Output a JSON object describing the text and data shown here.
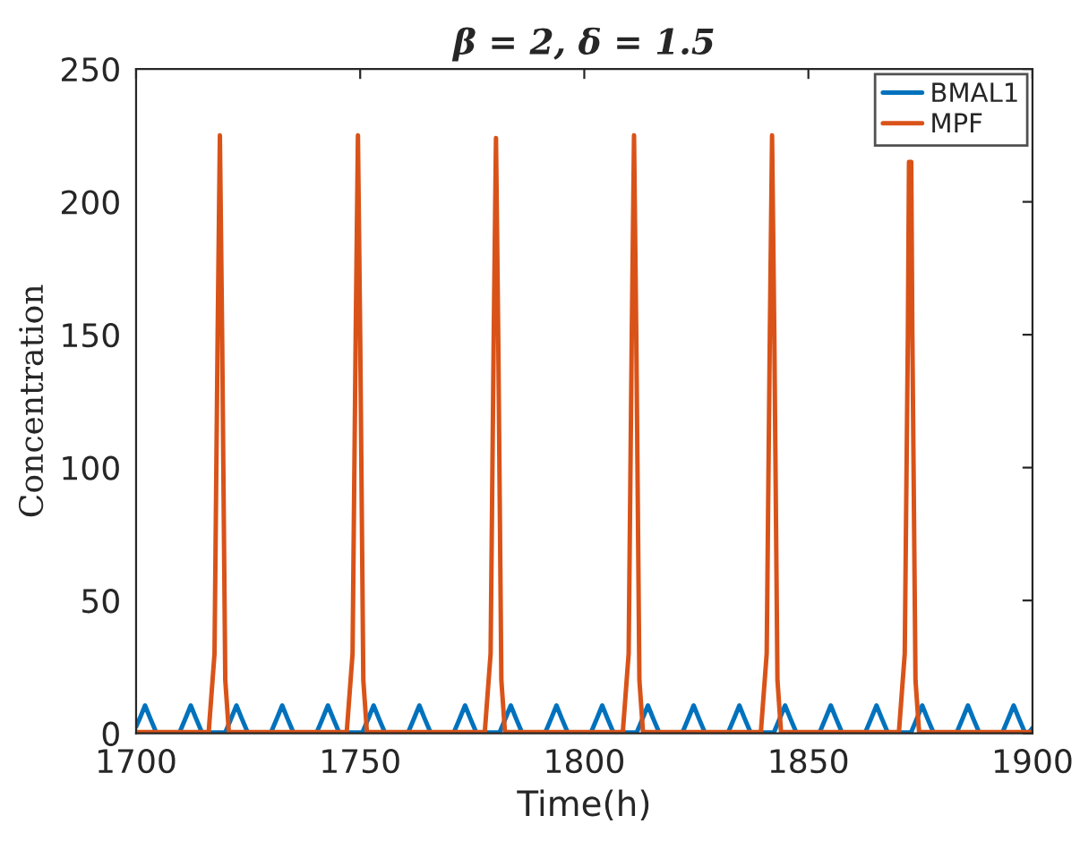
{
  "chart_data": {
    "type": "line",
    "title": "β = 2, δ = 1.5",
    "xlabel": "Time(h)",
    "ylabel": "Concentration",
    "xlim": [
      1700,
      1900
    ],
    "xticks": [
      1700,
      1750,
      1800,
      1850,
      1900
    ],
    "ylim": [
      0,
      250
    ],
    "yticks": [
      0,
      50,
      100,
      150,
      200,
      250
    ],
    "grid": false,
    "legend": "top right",
    "marker": "none",
    "line_style": "solid",
    "series": [
      {
        "name": "BMAL1",
        "color": "#0072bd",
        "x": [
          1700,
          1700.8,
          1702,
          1703.2,
          1704.5,
          1709.7,
          1711,
          1712.2,
          1713.4,
          1714.7,
          1719.9,
          1721.2,
          1722.4,
          1723.6,
          1724.9,
          1730.1,
          1731.4,
          1732.6,
          1733.8,
          1735.1,
          1740.3,
          1741.6,
          1742.8,
          1744,
          1745.3,
          1750.5,
          1751.8,
          1753,
          1754.2,
          1755.5,
          1760.7,
          1762,
          1763.2,
          1764.4,
          1765.7,
          1770.9,
          1772.2,
          1773.4,
          1774.6,
          1775.9,
          1781.1,
          1782.4,
          1783.6,
          1784.8,
          1786.1,
          1791.3,
          1792.6,
          1793.8,
          1795,
          1796.3,
          1801.5,
          1802.8,
          1804,
          1805.2,
          1806.5,
          1811.7,
          1813,
          1814.2,
          1815.4,
          1816.7,
          1821.9,
          1823.2,
          1824.4,
          1825.6,
          1826.9,
          1832.1,
          1833.4,
          1834.6,
          1835.8,
          1837.1,
          1842.3,
          1843.6,
          1844.8,
          1846,
          1847.3,
          1852.5,
          1853.8,
          1855,
          1856.2,
          1857.5,
          1862.7,
          1864,
          1865.2,
          1866.4,
          1867.7,
          1872.9,
          1874.2,
          1875.4,
          1876.6,
          1877.9,
          1883.1,
          1884.4,
          1885.6,
          1886.8,
          1888.1,
          1893.3,
          1894.6,
          1895.8,
          1897,
          1898.3,
          1899.2,
          1900
        ],
        "values": [
          2.5,
          5.5,
          10.5,
          5.5,
          0.3,
          0.3,
          5.5,
          10.5,
          5.5,
          0.3,
          0.3,
          5.5,
          10.5,
          5.5,
          0.3,
          0.3,
          5.5,
          10.5,
          5.5,
          0.3,
          0.3,
          5.5,
          10.5,
          5.5,
          0.3,
          0.3,
          5.5,
          10.5,
          5.5,
          0.3,
          0.3,
          5.5,
          10.5,
          5.5,
          0.3,
          0.3,
          5.5,
          10.5,
          5.5,
          0.3,
          0.3,
          5.5,
          10.5,
          5.5,
          0.3,
          0.3,
          5.5,
          10.5,
          5.5,
          0.3,
          0.3,
          5.5,
          10.5,
          5.5,
          0.3,
          0.3,
          5.5,
          10.5,
          5.5,
          0.3,
          0.3,
          5.5,
          10.5,
          5.5,
          0.3,
          0.3,
          5.5,
          10.5,
          5.5,
          0.3,
          0.3,
          5.5,
          10.5,
          5.5,
          0.3,
          0.3,
          5.5,
          10.5,
          5.5,
          0.3,
          0.3,
          5.5,
          10.5,
          5.5,
          0.3,
          0.3,
          5.5,
          10.5,
          5.5,
          0.3,
          0.3,
          5.5,
          10.5,
          5.5,
          0.3,
          0.3,
          5.5,
          10.5,
          5.5,
          0.3,
          0.3,
          2
        ]
      },
      {
        "name": "MPF",
        "color": "#d95319",
        "x": [
          1700,
          1716.2,
          1717.5,
          1718.2,
          1718.7,
          1719.2,
          1719.9,
          1720.7,
          1747,
          1748.3,
          1749,
          1749.5,
          1750,
          1750.7,
          1751.5,
          1777.8,
          1779.1,
          1779.8,
          1780.3,
          1780.8,
          1781.5,
          1782.3,
          1808.6,
          1809.9,
          1810.6,
          1811.1,
          1811.6,
          1812.3,
          1813.1,
          1839.4,
          1840.7,
          1841.4,
          1841.9,
          1842.4,
          1843.1,
          1843.9,
          1870.2,
          1871.5,
          1872.2,
          1872.45,
          1872.7,
          1872.95,
          1873.2,
          1873.9,
          1874.7,
          1900
        ],
        "values": [
          0.5,
          0.5,
          30,
          150,
          225,
          150,
          20,
          0.5,
          0.5,
          30,
          150,
          225,
          150,
          20,
          0.5,
          0.5,
          30,
          150,
          224,
          150,
          20,
          0.5,
          0.5,
          30,
          150,
          225,
          150,
          20,
          0.5,
          0.5,
          30,
          150,
          225,
          150,
          20,
          0.5,
          0.5,
          30,
          150,
          215,
          null,
          215,
          150,
          20,
          0.5,
          0.5
        ]
      }
    ]
  }
}
